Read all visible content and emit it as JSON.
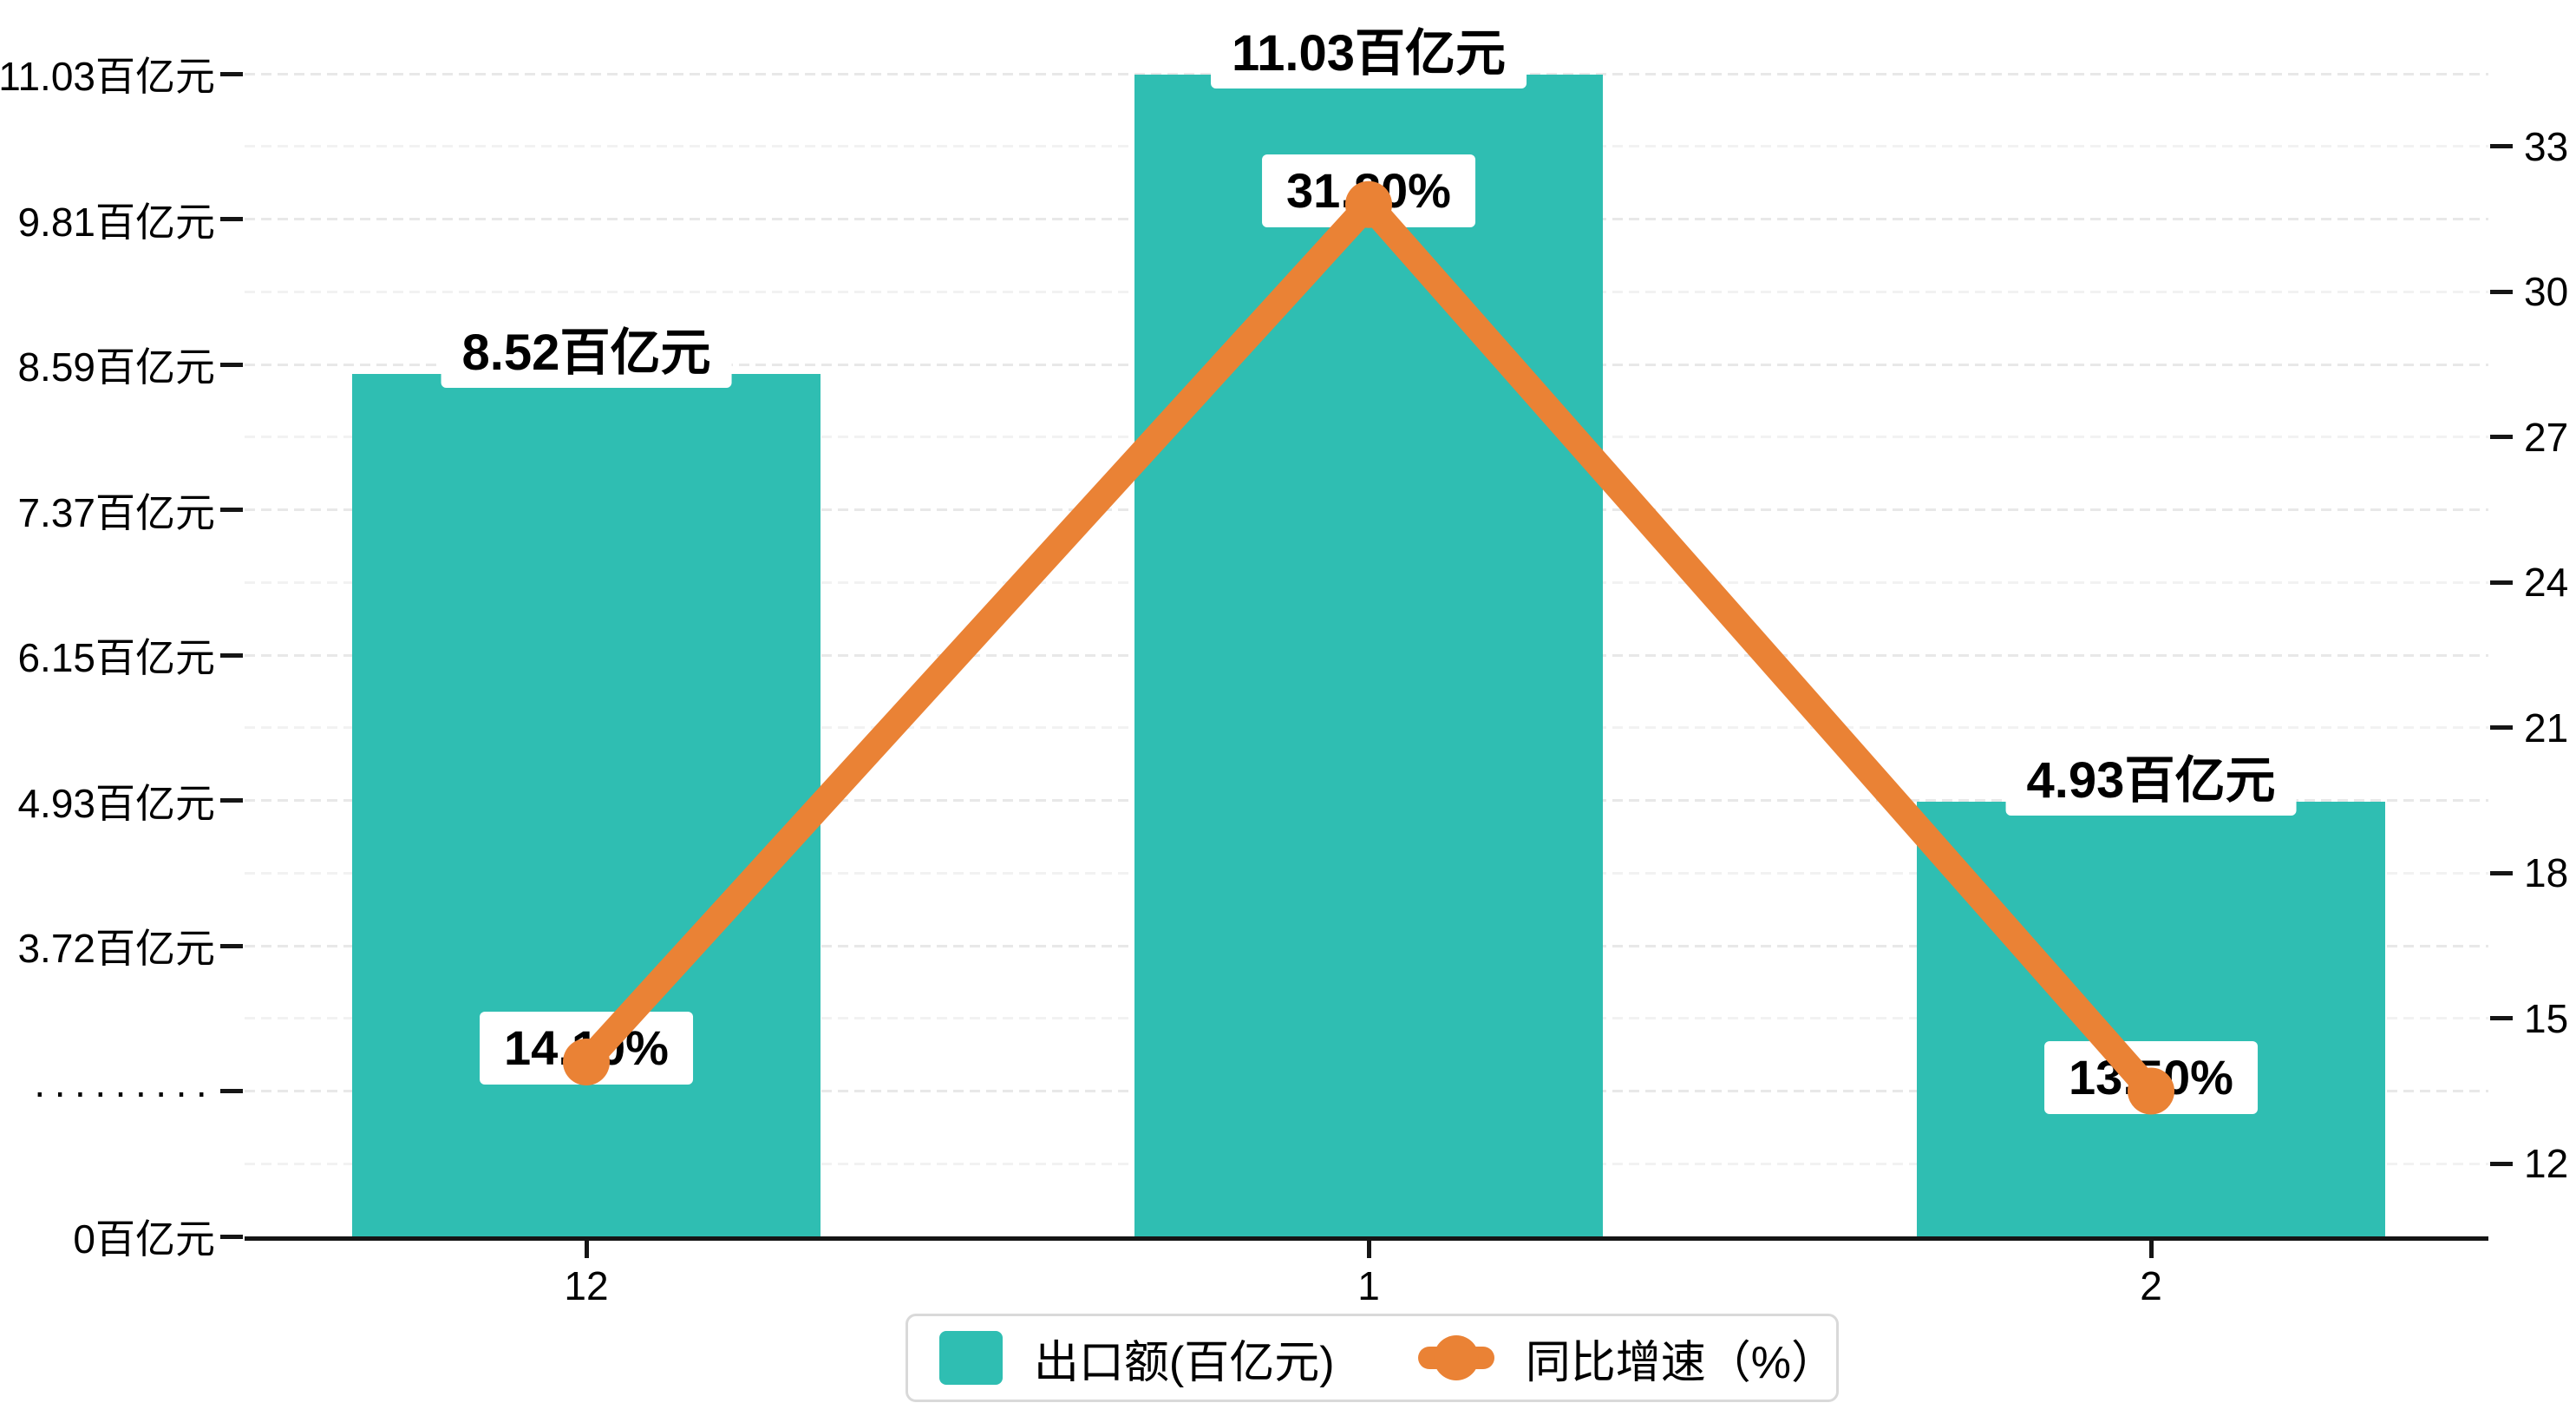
{
  "chart_data": {
    "type": "bar",
    "combo": "bar+line dual axis",
    "categories": [
      "12",
      "1",
      "2"
    ],
    "series": [
      {
        "name": "出口额(百亿元)",
        "type": "bar",
        "axis": "left",
        "color": "#2fbeb2",
        "values": [
          8.52,
          11.03,
          4.93
        ],
        "data_labels": [
          "8.52百亿元",
          "11.03百亿元",
          "4.93百亿元"
        ]
      },
      {
        "name": "同比增速（%）",
        "type": "line",
        "axis": "right",
        "color": "#ea8235",
        "values": [
          14.1,
          31.8,
          13.5
        ],
        "data_labels": [
          "14.10%",
          "31.80%",
          "13.50%"
        ]
      }
    ],
    "left_axis": {
      "tick_labels": [
        "0百亿元",
        "·········",
        "3.72百亿元",
        "4.93百亿元",
        "6.15百亿元",
        "7.37百亿元",
        "8.59百亿元",
        "9.81百亿元",
        "11.03百亿元"
      ],
      "tick_values": [
        0,
        null,
        3.72,
        4.93,
        6.15,
        7.37,
        8.59,
        9.81,
        11.03
      ],
      "broken_axis": true,
      "first_value_above_break": 3.72,
      "step": 1.22
    },
    "right_axis": {
      "tick_labels": [
        "12",
        "15",
        "18",
        "21",
        "24",
        "27",
        "30",
        "33"
      ],
      "min": 12,
      "max": 33,
      "step": 3
    },
    "grid": {
      "major_color": "#e8e8e8",
      "minor_color": "#f2f2f2",
      "dashed": true
    },
    "legend": {
      "items": [
        {
          "label": "出口额(百亿元)",
          "marker": "bar-swatch"
        },
        {
          "label": "同比增速（%）",
          "marker": "line-dot"
        }
      ]
    },
    "colors": {
      "bar": "#2fbeb2",
      "line": "#ea8235",
      "axis": "#151515",
      "label_bg": "#ffffff",
      "text": "#000000"
    }
  }
}
